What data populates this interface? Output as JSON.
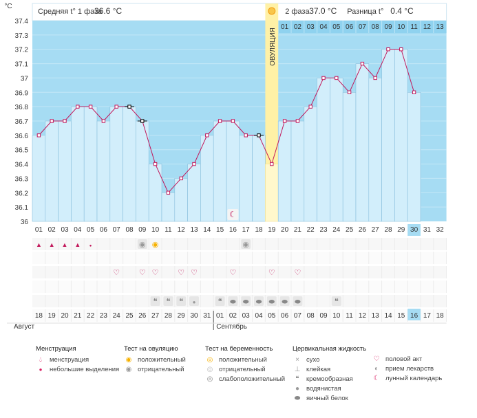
{
  "chart_data": {
    "type": "line",
    "y_unit": "°C",
    "ylim": [
      36,
      37.4
    ],
    "y_ticks": [
      "36",
      "36.1",
      "36.2",
      "36.3",
      "36.4",
      "36.5",
      "36.6",
      "36.7",
      "36.8",
      "36.9",
      "37",
      "37.1",
      "37.2",
      "37.3",
      "37.4"
    ],
    "cycle_days": [
      "01",
      "02",
      "03",
      "04",
      "05",
      "06",
      "07",
      "08",
      "09",
      "10",
      "11",
      "12",
      "13",
      "14",
      "15",
      "16",
      "17",
      "18",
      "19",
      "20",
      "21",
      "22",
      "23",
      "24",
      "25",
      "26",
      "27",
      "28",
      "29",
      "30",
      "31",
      "32"
    ],
    "phase2_days": [
      "01",
      "02",
      "03",
      "04",
      "05",
      "06",
      "07",
      "08",
      "09",
      "10",
      "11",
      "12",
      "13"
    ],
    "temperatures": [
      36.6,
      36.7,
      36.7,
      36.8,
      36.8,
      36.7,
      36.8,
      36.8,
      36.7,
      36.4,
      36.2,
      36.3,
      36.4,
      36.6,
      36.7,
      36.7,
      36.6,
      36.6,
      36.4,
      36.7,
      36.7,
      36.8,
      37.0,
      37.0,
      36.9,
      37.1,
      37.0,
      37.2,
      37.2,
      36.9
    ],
    "excluded_days": [
      8,
      9,
      18
    ],
    "ovulation_day": 19,
    "ovulation_label": "ОВУЛЯЦИЯ",
    "current_day": 30,
    "header": {
      "phase1_label": "Средняя t° 1 фаза",
      "phase1_value": "36.6 °C",
      "phase2_label": "2 фаза",
      "phase2_value": "37.0 °C",
      "diff_label": "Разница t°",
      "diff_value": "0.4 °C"
    },
    "dates": [
      "18",
      "19",
      "20",
      "21",
      "22",
      "23",
      "24",
      "25",
      "26",
      "27",
      "28",
      "29",
      "30",
      "31",
      "01",
      "02",
      "03",
      "04",
      "05",
      "06",
      "07",
      "08",
      "09",
      "10",
      "11",
      "12",
      "13",
      "14",
      "15",
      "16",
      "17",
      "18"
    ],
    "weekend_days": [
      1,
      7,
      8,
      14,
      15,
      21,
      22,
      28,
      29
    ],
    "current_date_index": 30,
    "month1": "Август",
    "month2": "Сентябрь",
    "markers": {
      "menstruation": [
        1,
        2,
        3,
        4
      ],
      "light_spotting": [
        5
      ],
      "ovulation_test_negative": [
        9,
        17
      ],
      "ovulation_test_positive": [
        10
      ],
      "intercourse": [
        7,
        9,
        10,
        12,
        13,
        16,
        19,
        21
      ],
      "fluid_creamy": [
        10,
        11,
        12,
        15,
        24
      ],
      "fluid_watery": [
        13
      ],
      "fluid_eggwhite": [
        16,
        17,
        18,
        19,
        20,
        21
      ],
      "lunar": [
        16
      ]
    }
  },
  "legend": {
    "menstruation": {
      "title": "Менструация",
      "items": [
        "менструация",
        "небольшие выделения"
      ]
    },
    "ovulation_test": {
      "title": "Тест на овуляцию",
      "items": [
        "положительный",
        "отрицательный"
      ]
    },
    "pregnancy_test": {
      "title": "Тест на беременность",
      "items": [
        "положительный",
        "отрицательный",
        "слабоположительный"
      ]
    },
    "cervical_fluid": {
      "title": "Цервикальная жидкость",
      "items": [
        "сухо",
        "клейкая",
        "кремообразная",
        "водянистая",
        "яичный белок"
      ]
    },
    "other": {
      "items": [
        "половой акт",
        "прием лекарств",
        "лунный календарь"
      ]
    }
  },
  "colors": {
    "plot_bg": "#a6dcf3",
    "bar_fill": "#d2eefb",
    "bar_stroke": "#88bfdc",
    "line": "#c2185b",
    "ovulation": "#fff1a6",
    "accent_red": "#c2185b",
    "current_day_bg": "#a6dcf3"
  }
}
